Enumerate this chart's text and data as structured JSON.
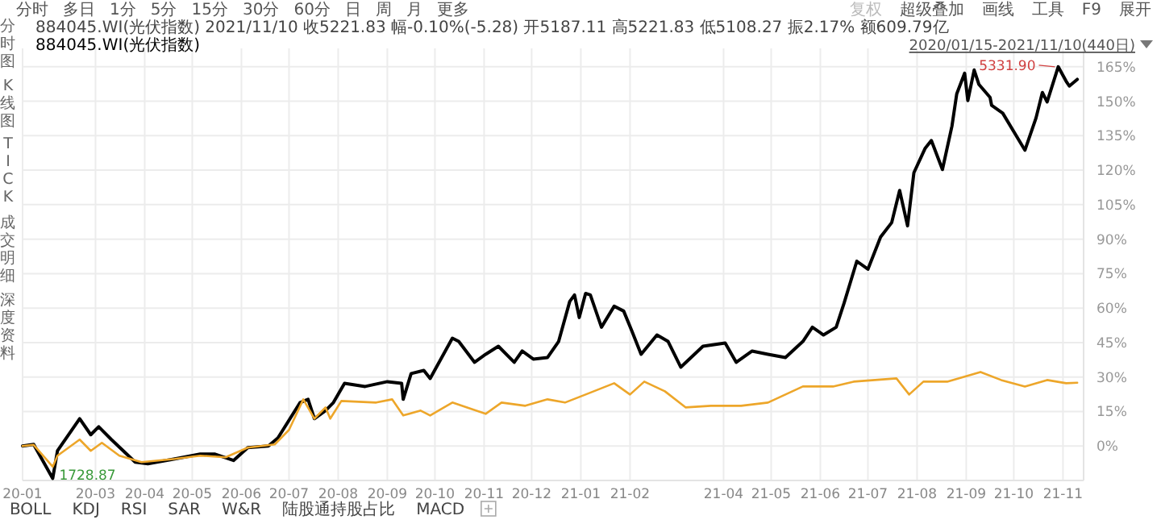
{
  "chart_data": {
    "type": "line",
    "subtitle": "884045.WI(光伏指数)  2021/11/10  收5221.83  幅-0.10%(-5.28)  开5187.11  高5221.83  低5108.27  振2.17%  额609.79亿",
    "annotations": [
      "分时",
      "多日",
      "1分",
      "5分",
      "15分",
      "30分",
      "60分",
      "日",
      "周",
      "月",
      "更多",
      "复权",
      "超级叠加",
      "画线",
      "工具",
      "F9",
      "展开",
      "分时图",
      "K线图",
      "TICK",
      "成交明细",
      "深度资料",
      "BOLL",
      "KDJ",
      "RSI",
      "SAR",
      "W&R",
      "陆股通持股占比",
      "MACD",
      "2020/01/15-2021/11/10(440日)",
      {
        "text": "5331.90",
        "x": "2021-10-29",
        "y": 165
      },
      {
        "text": "1728.87",
        "x": "2020-02-03",
        "y": -14.1
      }
    ],
    "xlim": [
      "2020-01-15",
      "2021-11-14"
    ],
    "xticks": [
      {
        "value": "2020-01-15",
        "label": "20-01"
      },
      {
        "value": "2020-03",
        "label": "20-03"
      },
      {
        "value": "2020-04",
        "label": "20-04"
      },
      {
        "value": "2020-05",
        "label": "20-05"
      },
      {
        "value": "2020-06",
        "label": "20-06"
      },
      {
        "value": "2020-07",
        "label": "20-07"
      },
      {
        "value": "2020-08",
        "label": "20-08"
      },
      {
        "value": "2020-09",
        "label": "20-09"
      },
      {
        "value": "2020-10",
        "label": "20-10"
      },
      {
        "value": "2020-11",
        "label": "20-11"
      },
      {
        "value": "2020-12",
        "label": "20-12"
      },
      {
        "value": "2021-01",
        "label": "21-01"
      },
      {
        "value": "2021-02",
        "label": "21-02"
      },
      {
        "value": "2021-04",
        "label": "21-04"
      },
      {
        "value": "2021-05",
        "label": "21-05"
      },
      {
        "value": "2021-06",
        "label": "21-06"
      },
      {
        "value": "2021-07",
        "label": "21-07"
      },
      {
        "value": "2021-08",
        "label": "21-08"
      },
      {
        "value": "2021-09",
        "label": "21-09"
      },
      {
        "value": "2021-10",
        "label": "21-10"
      },
      {
        "value": "2021-11",
        "label": "21-11"
      }
    ],
    "ylim": [
      -15,
      173
    ],
    "yticks": [
      {
        "value": 0,
        "label": "0%"
      },
      {
        "value": 15,
        "label": "15%"
      },
      {
        "value": 30,
        "label": "30%"
      },
      {
        "value": 45,
        "label": "45%"
      },
      {
        "value": 60,
        "label": "60%"
      },
      {
        "value": 75,
        "label": "75%"
      },
      {
        "value": 90,
        "label": "90%"
      },
      {
        "value": 105,
        "label": "105%"
      },
      {
        "value": 120,
        "label": "120%"
      },
      {
        "value": 135,
        "label": "135%"
      },
      {
        "value": 150,
        "label": "150%"
      },
      {
        "value": 165,
        "label": "165%"
      }
    ],
    "grid": true,
    "legend": "top left",
    "series": [
      {
        "name": "884045.WI(光伏指数)",
        "color": "#000000",
        "x": [
          "2020-01-15",
          "2020-01-22",
          "2020-02-03",
          "2020-02-06",
          "2020-02-20",
          "2020-02-27",
          "2020-03-03",
          "2020-03-11",
          "2020-03-26",
          "2020-04-03",
          "2020-04-20",
          "2020-05-06",
          "2020-05-15",
          "2020-05-27",
          "2020-06-05",
          "2020-06-18",
          "2020-06-24",
          "2020-07-08",
          "2020-07-13",
          "2020-07-17",
          "2020-07-24",
          "2020-07-29",
          "2020-08-05",
          "2020-08-18",
          "2020-09-01",
          "2020-09-10",
          "2020-09-11",
          "2020-09-16",
          "2020-09-24",
          "2020-09-28",
          "2020-10-12",
          "2020-10-16",
          "2020-10-26",
          "2020-11-02",
          "2020-11-10",
          "2020-11-20",
          "2020-11-25",
          "2020-12-02",
          "2020-12-11",
          "2020-12-18",
          "2020-12-25",
          "2020-12-28",
          "2020-12-31",
          "2021-01-04",
          "2021-01-07",
          "2021-01-14",
          "2021-01-22",
          "2021-01-28",
          "2021-02-02",
          "2021-02-08",
          "2021-02-18",
          "2021-02-25",
          "2021-03-05",
          "2021-03-19",
          "2021-04-02",
          "2021-04-09",
          "2021-04-19",
          "2021-04-29",
          "2021-05-10",
          "2021-05-21",
          "2021-05-27",
          "2021-06-03",
          "2021-06-11",
          "2021-06-16",
          "2021-06-24",
          "2021-07-01",
          "2021-07-09",
          "2021-07-16",
          "2021-07-21",
          "2021-07-26",
          "2021-07-30",
          "2021-08-06",
          "2021-08-10",
          "2021-08-17",
          "2021-08-23",
          "2021-08-26",
          "2021-08-31",
          "2021-09-02",
          "2021-09-06",
          "2021-09-09",
          "2021-09-16",
          "2021-09-17",
          "2021-09-24",
          "2021-10-08",
          "2021-10-15",
          "2021-10-19",
          "2021-10-22",
          "2021-10-29",
          "2021-11-03",
          "2021-11-05",
          "2021-11-10"
        ],
        "values": [
          0,
          0.7,
          -14.1,
          -2.1,
          11.9,
          4.9,
          8.4,
          2.8,
          -7,
          -7.7,
          -5.6,
          -3.5,
          -3.5,
          -6.3,
          -0.7,
          0,
          3.5,
          18.9,
          20.3,
          11.9,
          15.4,
          18.9,
          27.3,
          25.9,
          28,
          27.3,
          20.3,
          31.5,
          32.9,
          29.4,
          46.9,
          45.5,
          36.4,
          39.9,
          43.4,
          36.4,
          41.3,
          37.8,
          38.5,
          45.5,
          62.9,
          65.7,
          55.9,
          66.4,
          65.7,
          51.7,
          60.8,
          58.7,
          50.3,
          39.9,
          48.3,
          45.5,
          34.3,
          43.4,
          44.8,
          36.4,
          41.3,
          39.9,
          38.5,
          45.5,
          51.7,
          48.3,
          51.7,
          62.2,
          80.4,
          76.9,
          90.9,
          97.2,
          111.2,
          95.8,
          118.9,
          129.4,
          132.9,
          120.3,
          139.2,
          153.2,
          162.2,
          150.3,
          163.6,
          157.3,
          151.7,
          148.2,
          144.8,
          128.7,
          142.7,
          153.8,
          149.7,
          165,
          158.7,
          156.6,
          159.5
        ]
      },
      {
        "color": "#eda62a",
        "x": [
          "2020-01-15",
          "2020-01-22",
          "2020-02-03",
          "2020-02-06",
          "2020-02-20",
          "2020-02-27",
          "2020-03-05",
          "2020-03-16",
          "2020-03-30",
          "2020-04-20",
          "2020-05-06",
          "2020-05-22",
          "2020-06-05",
          "2020-06-22",
          "2020-07-01",
          "2020-07-10",
          "2020-07-17",
          "2020-07-24",
          "2020-07-27",
          "2020-08-03",
          "2020-08-25",
          "2020-09-04",
          "2020-09-11",
          "2020-09-22",
          "2020-09-28",
          "2020-10-12",
          "2020-11-02",
          "2020-11-12",
          "2020-11-27",
          "2020-12-11",
          "2020-12-22",
          "2021-01-04",
          "2021-01-22",
          "2021-02-01",
          "2021-02-10",
          "2021-02-23",
          "2021-03-08",
          "2021-03-24",
          "2021-04-12",
          "2021-04-29",
          "2021-05-21",
          "2021-06-09",
          "2021-06-22",
          "2021-07-19",
          "2021-07-27",
          "2021-08-05",
          "2021-08-20",
          "2021-09-10",
          "2021-09-23",
          "2021-10-08",
          "2021-10-22",
          "2021-11-03",
          "2021-11-10"
        ],
        "values": [
          0,
          0.5,
          -9,
          -4.2,
          2.8,
          -2.1,
          1.4,
          -4.2,
          -7,
          -5.6,
          -4.2,
          -4.9,
          -0.7,
          0.7,
          7,
          20.3,
          11.9,
          16.8,
          11.9,
          19.6,
          18.9,
          20.3,
          13.3,
          15.4,
          13.3,
          18.9,
          14,
          18.9,
          17.5,
          20.3,
          18.9,
          22.4,
          27.3,
          22.4,
          28,
          23.8,
          16.8,
          17.5,
          17.5,
          18.9,
          25.9,
          25.9,
          28,
          29.4,
          22.4,
          28,
          28,
          32.2,
          28.7,
          25.9,
          28.7,
          27.3,
          27.5
        ]
      }
    ]
  }
}
